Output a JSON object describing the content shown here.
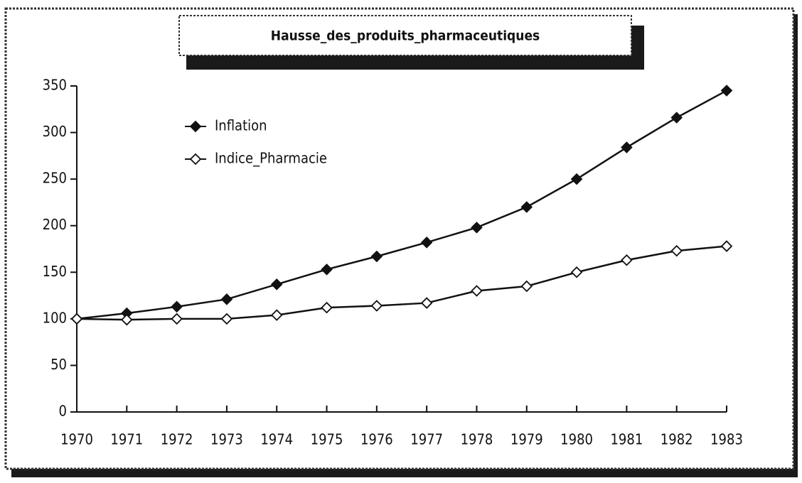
{
  "chart_data": {
    "type": "line",
    "title": "Hausse_des_produits_pharmaceutiques",
    "categories": [
      "1970",
      "1971",
      "1972",
      "1973",
      "1974",
      "1975",
      "1976",
      "1977",
      "1978",
      "1979",
      "1980",
      "1981",
      "1982",
      "1983"
    ],
    "series": [
      {
        "name": "Inflation",
        "color": "#111111",
        "marker": "filled",
        "values": [
          100,
          106,
          113,
          121,
          137,
          153,
          167,
          182,
          198,
          220,
          250,
          284,
          316,
          345
        ]
      },
      {
        "name": "Indice_Pharmacie",
        "color": "#111111",
        "marker": "open",
        "values": [
          100,
          99,
          100,
          100,
          104,
          112,
          114,
          117,
          130,
          135,
          150,
          163,
          173,
          178
        ]
      }
    ],
    "ylim": [
      0,
      350
    ],
    "yticks": [
      0,
      50,
      100,
      150,
      200,
      250,
      300,
      350
    ],
    "grid": false,
    "legend": "upper left"
  }
}
